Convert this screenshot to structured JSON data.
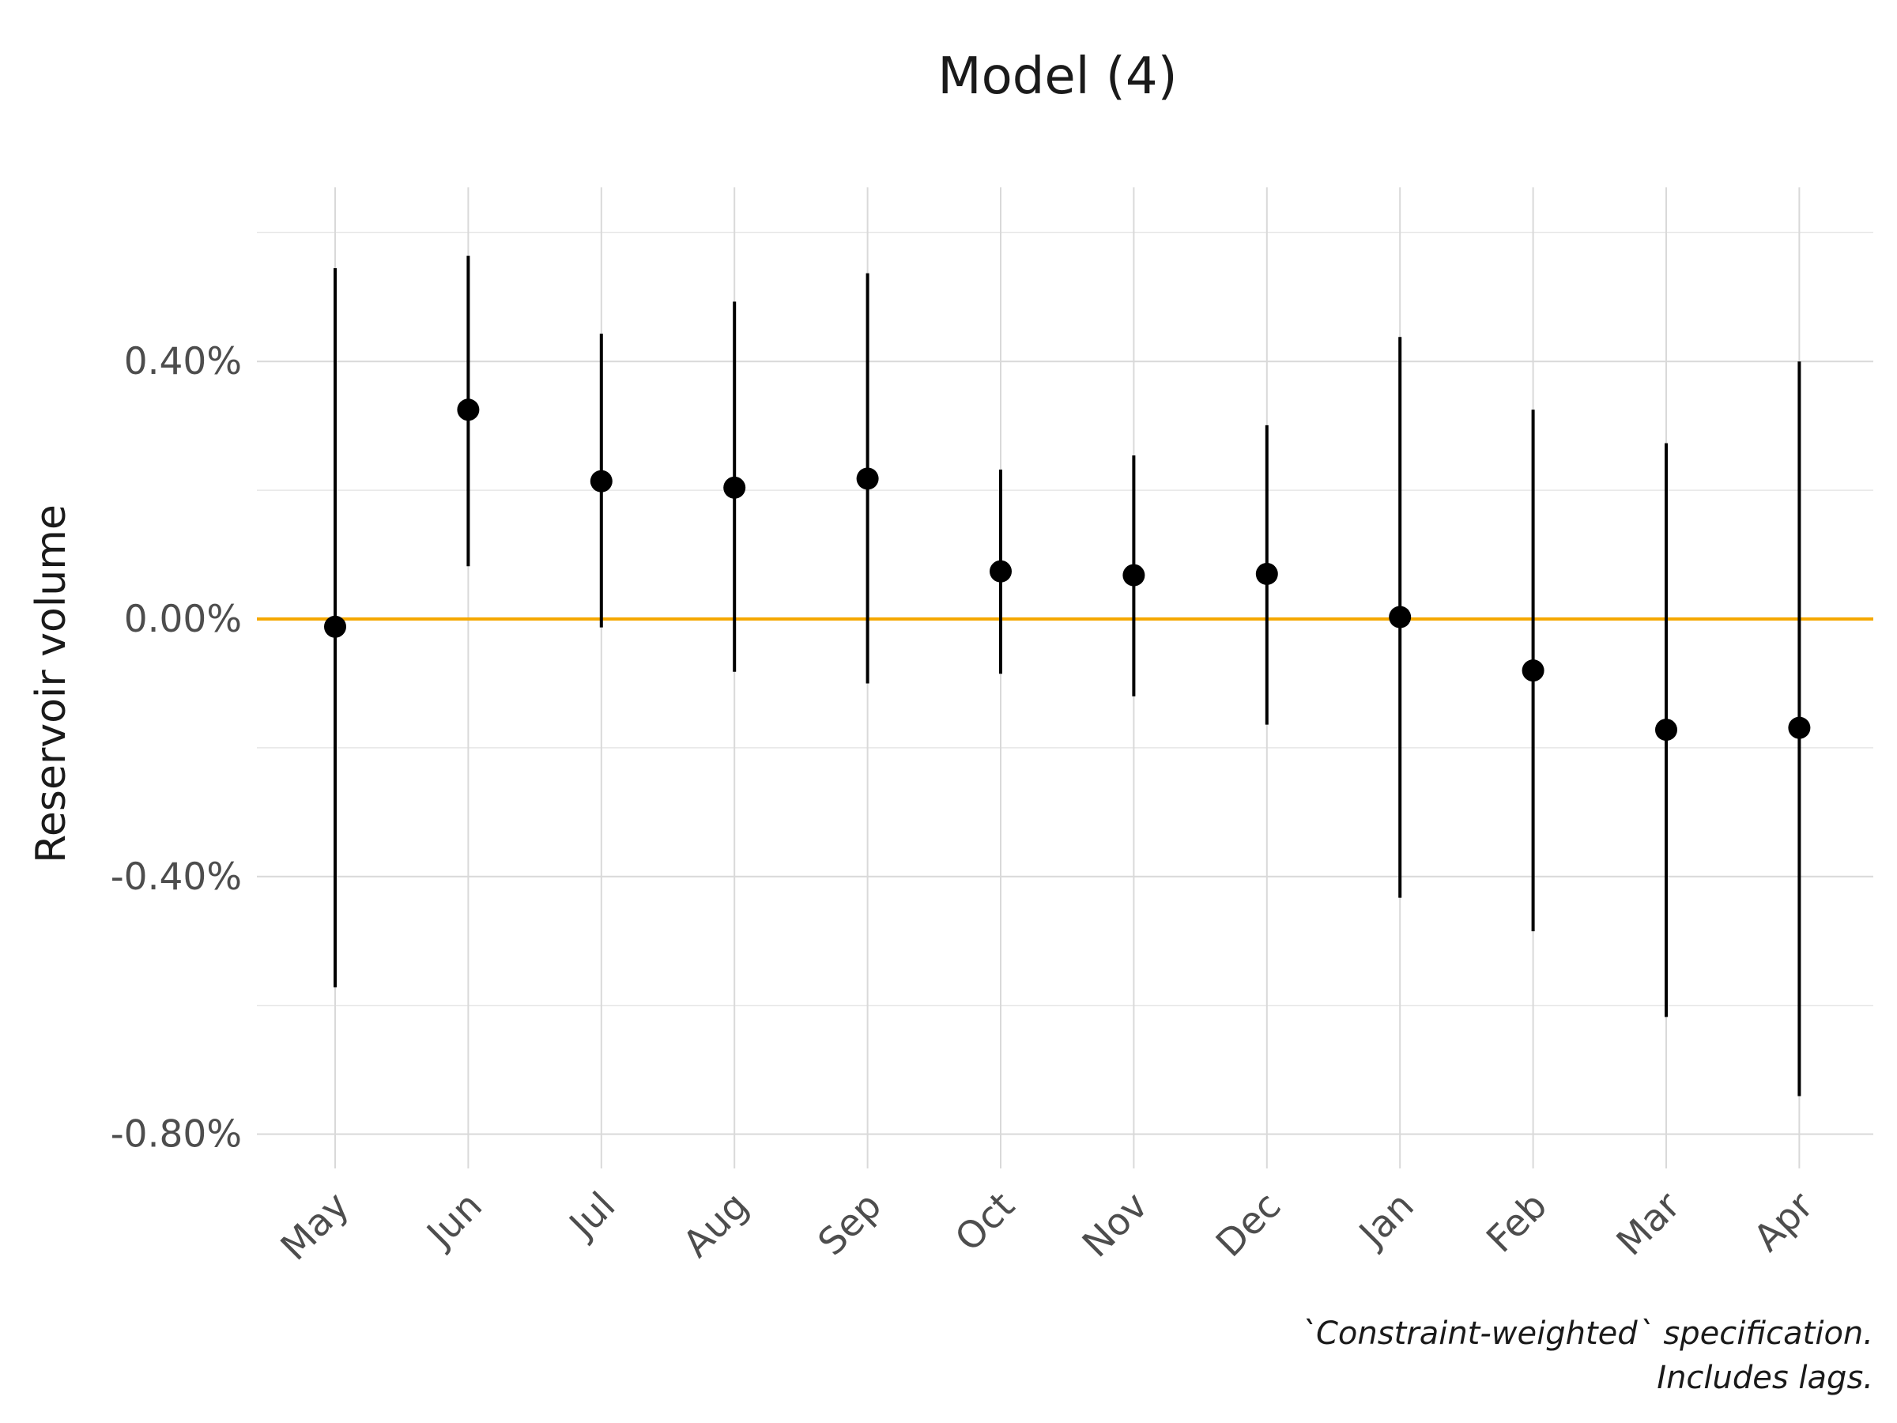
{
  "chart_data": {
    "type": "scatter",
    "title": "Model (4)",
    "xlabel": "",
    "ylabel": "Reservoir volume",
    "caption": [
      "`Constraint-weighted` specification.",
      "Includes lags."
    ],
    "categories": [
      "May",
      "Jun",
      "Jul",
      "Aug",
      "Sep",
      "Oct",
      "Nov",
      "Dec",
      "Jan",
      "Feb",
      "Mar",
      "Apr"
    ],
    "values": [
      -0.012,
      0.325,
      0.214,
      0.204,
      0.218,
      0.074,
      0.068,
      0.07,
      0.003,
      -0.08,
      -0.172,
      -0.169
    ],
    "lower": [
      -0.572,
      0.082,
      -0.013,
      -0.082,
      -0.1,
      -0.085,
      -0.12,
      -0.164,
      -0.433,
      -0.485,
      -0.618,
      -0.741
    ],
    "upper": [
      0.545,
      0.564,
      0.443,
      0.493,
      0.537,
      0.232,
      0.254,
      0.301,
      0.438,
      0.325,
      0.273,
      0.4
    ],
    "ylim": [
      -0.85,
      0.62
    ],
    "yticks": [
      -0.8,
      -0.4,
      0.0,
      0.4
    ],
    "ytick_labels": [
      "-0.80%",
      "-0.40%",
      "0.00%",
      "0.40%"
    ],
    "reference_line": {
      "y": 0.0,
      "color": "#f5a800"
    },
    "grid": true,
    "legend": "none",
    "point_color": "#000000"
  }
}
